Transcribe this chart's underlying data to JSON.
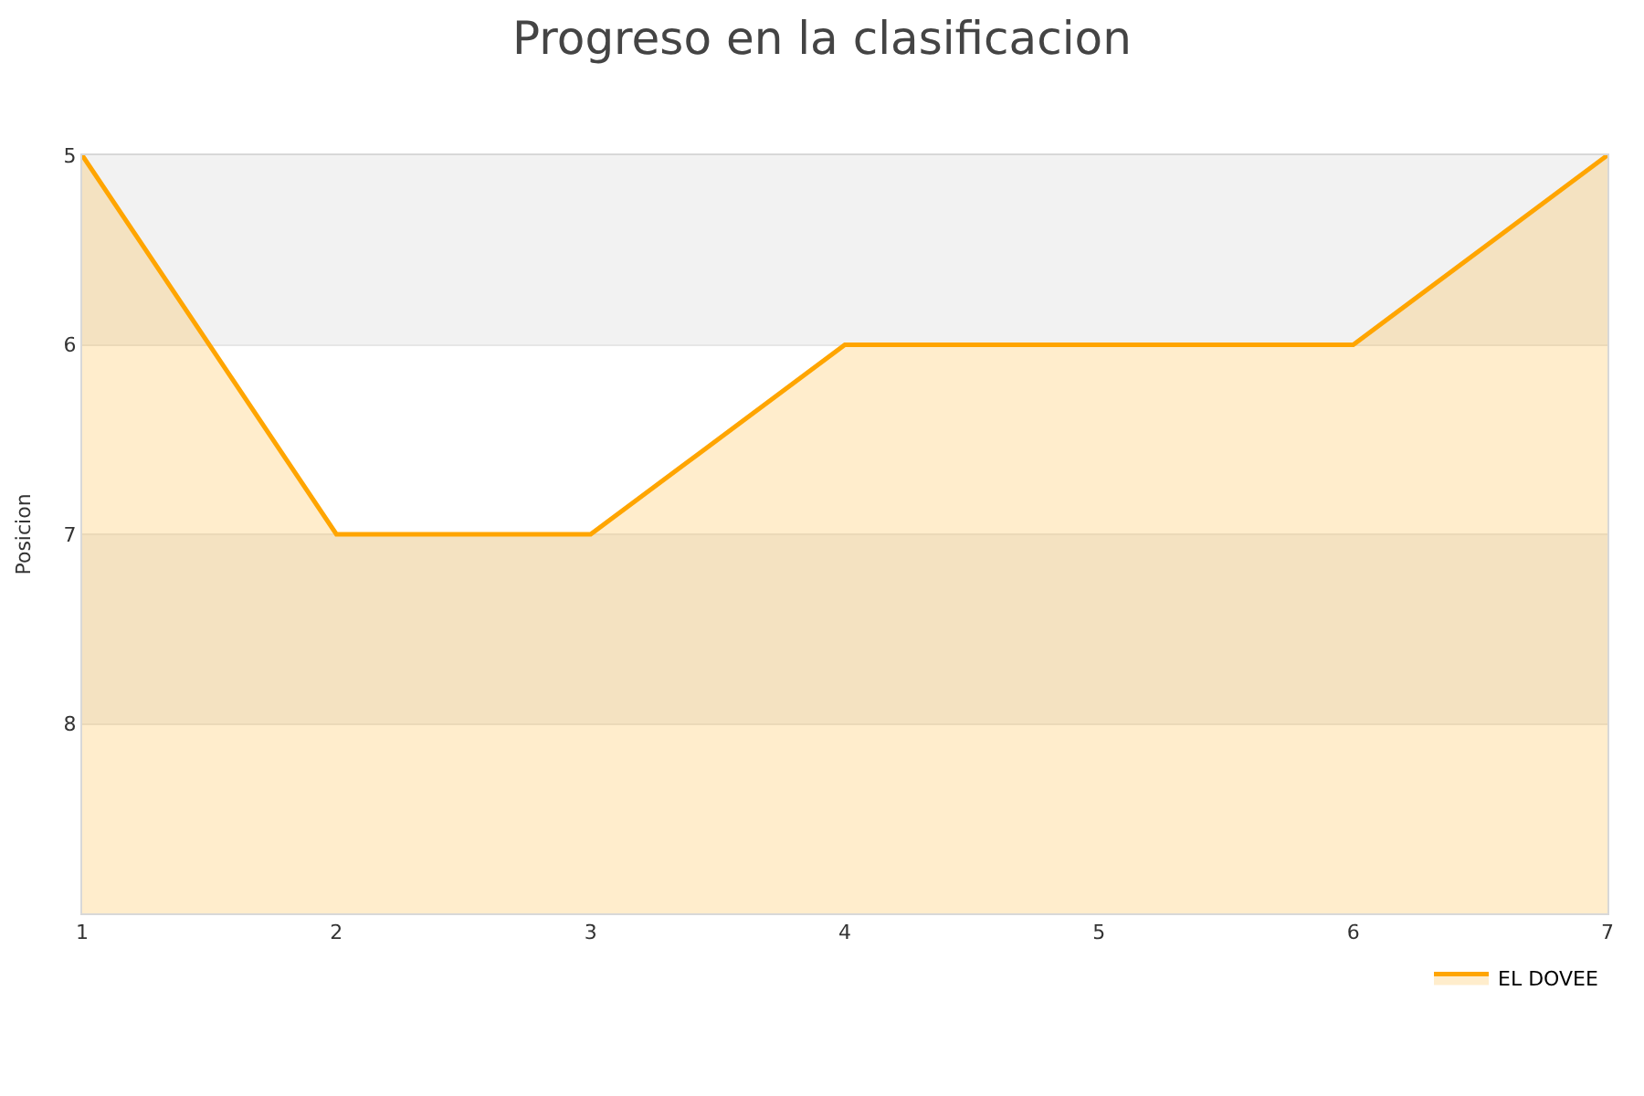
{
  "chart_data": {
    "type": "area",
    "title": "Progreso en la clasificacion",
    "ylabel": "Posicion",
    "x": [
      1,
      2,
      3,
      4,
      5,
      6,
      7
    ],
    "series": [
      {
        "name": "EL DOVEE",
        "color": "#ffa500",
        "values": [
          5,
          7,
          7,
          6,
          6,
          6,
          5
        ]
      }
    ],
    "xlim": [
      1,
      7
    ],
    "xticks": [
      1,
      2,
      3,
      4,
      5,
      6,
      7
    ],
    "ylim": [
      9,
      5
    ],
    "yticks": [
      5,
      6,
      7,
      8
    ],
    "bands": [
      {
        "axis": "y",
        "from": 5,
        "to": 6,
        "color": "#f2f2f2"
      },
      {
        "axis": "y",
        "from": 7,
        "to": 8,
        "color": "#f2f2f2"
      }
    ],
    "grid": "y",
    "legend": "bottom right"
  }
}
